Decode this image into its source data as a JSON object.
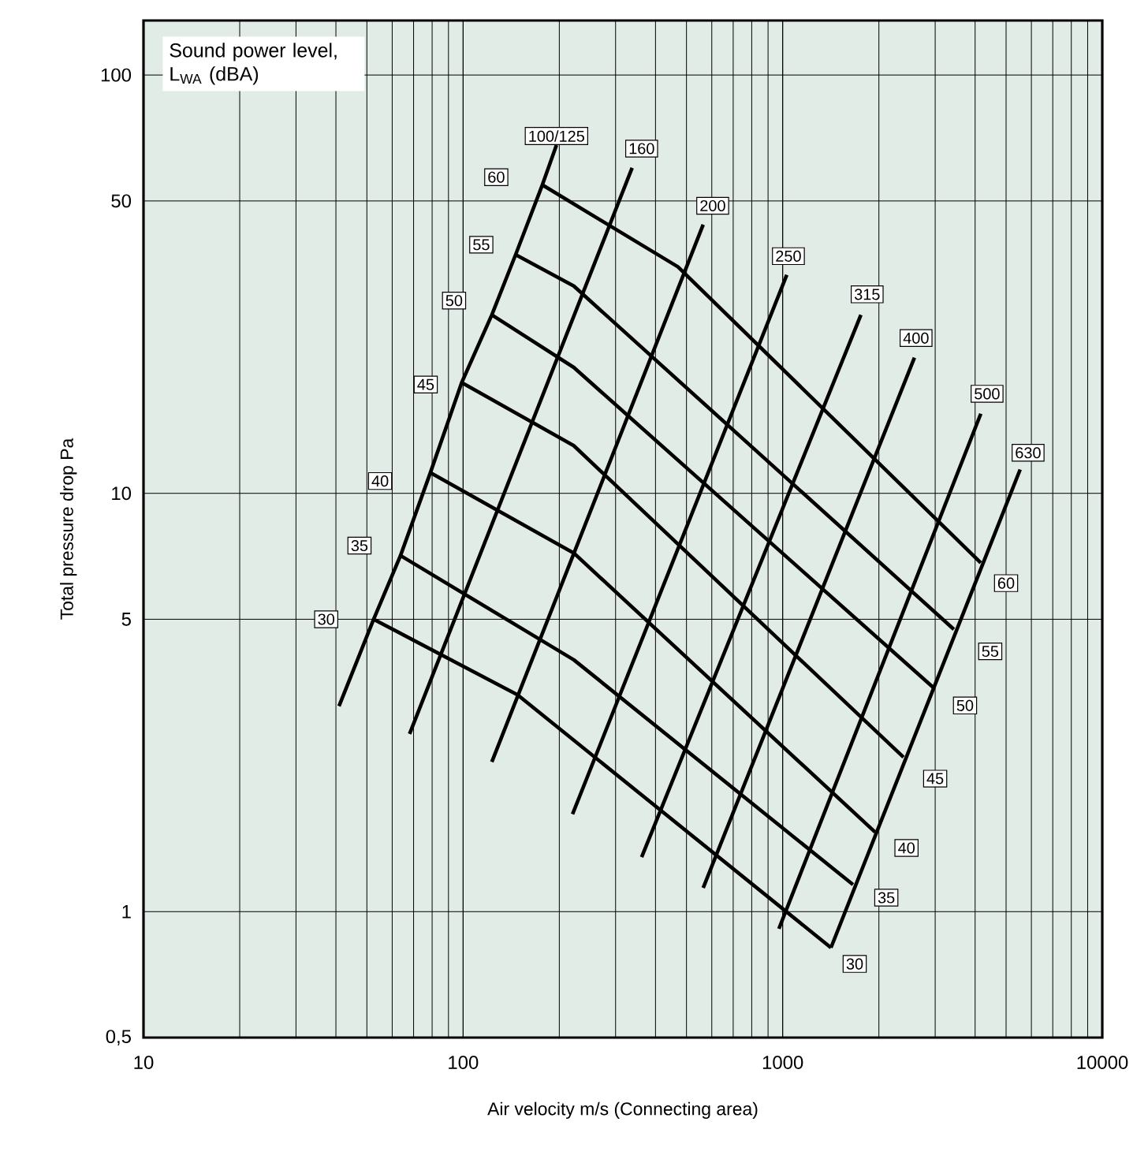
{
  "chart_data": {
    "type": "line",
    "xlabel": "Air velocity m/s (Connecting area)",
    "ylabel": "Total pressure drop Pa",
    "log": "xy",
    "grid": true,
    "marker": "none",
    "line_style": "solid",
    "xlim": [
      10,
      10000
    ],
    "ylim": [
      0.5,
      135
    ],
    "xticks": [
      10,
      100,
      1000,
      10000
    ],
    "yticks": [
      {
        "value": 0.5,
        "label": "0,5"
      },
      1,
      5,
      10,
      50,
      100
    ],
    "series": [
      {
        "color": "#000000",
        "x": [
          52.5,
          148,
          1416
        ],
        "values": [
          5.0,
          3.3,
          0.82
        ]
      },
      {
        "color": "#000000",
        "x": [
          63.7,
          222,
          1660
        ],
        "values": [
          7.1,
          4.0,
          1.16
        ]
      },
      {
        "color": "#000000",
        "x": [
          79,
          222,
          1946
        ],
        "values": [
          11.2,
          7.2,
          1.55
        ]
      },
      {
        "color": "#000000",
        "x": [
          99,
          222,
          2388
        ],
        "values": [
          18.4,
          13,
          2.34
        ]
      },
      {
        "color": "#000000",
        "x": [
          123,
          222,
          2965
        ],
        "values": [
          26.7,
          20,
          3.43
        ]
      },
      {
        "color": "#000000",
        "x": [
          146,
          222,
          3433
        ],
        "values": [
          37.2,
          31.3,
          4.73
        ]
      },
      {
        "color": "#000000",
        "x": [
          177,
          470,
          4168
        ],
        "values": [
          54.6,
          34.8,
          6.82
        ]
      },
      {
        "color": "#000000",
        "x": [
          40.9,
          52.5,
          63.7,
          79,
          99,
          123,
          146,
          177,
          196
        ],
        "values": [
          3.1,
          5.0,
          7.1,
          11.2,
          18.4,
          26.7,
          37.2,
          54.6,
          68
        ]
      },
      {
        "color": "#000000",
        "x": [
          68,
          338
        ],
        "values": [
          2.66,
          60
        ]
      },
      {
        "color": "#000000",
        "x": [
          123,
          564
        ],
        "values": [
          2.28,
          43.9
        ]
      },
      {
        "color": "#000000",
        "x": [
          220,
          1030
        ],
        "values": [
          1.71,
          33.3
        ]
      },
      {
        "color": "#000000",
        "x": [
          362,
          1757
        ],
        "values": [
          1.35,
          26.7
        ]
      },
      {
        "color": "#000000",
        "x": [
          564,
          2584
        ],
        "values": [
          1.14,
          21.1
        ]
      },
      {
        "color": "#000000",
        "x": [
          973,
          4168
        ],
        "values": [
          0.91,
          15.5
        ]
      },
      {
        "color": "#000000",
        "x": [
          1416,
          5534
        ],
        "values": [
          0.82,
          11.4
        ]
      }
    ],
    "annotations": [
      "Sound power level, L$_{WA}$ (dBA)",
      {
        "text": "60",
        "x": 127,
        "y": 57
      },
      {
        "text": "55",
        "x": 114,
        "y": 39.3
      },
      {
        "text": "50",
        "x": 93.7,
        "y": 28.9
      },
      {
        "text": "45",
        "x": 76.4,
        "y": 18.2
      },
      {
        "text": "40",
        "x": 55,
        "y": 10.7
      },
      {
        "text": "35",
        "x": 47.4,
        "y": 7.5
      },
      {
        "text": "30",
        "x": 37.3,
        "y": 5.0
      },
      {
        "text": "60",
        "x": 5000,
        "y": 6.1
      },
      {
        "text": "55",
        "x": 4460,
        "y": 4.19
      },
      {
        "text": "50",
        "x": 3720,
        "y": 3.11
      },
      {
        "text": "45",
        "x": 3000,
        "y": 2.08
      },
      {
        "text": "40",
        "x": 2440,
        "y": 1.42
      },
      {
        "text": "35",
        "x": 2110,
        "y": 1.08
      },
      {
        "text": "30",
        "x": 1680,
        "y": 0.75
      },
      {
        "text": "100/125",
        "x": 196,
        "y": 68
      },
      {
        "text": "160",
        "x": 362,
        "y": 66.7
      },
      {
        "text": "200",
        "x": 604,
        "y": 48.7
      },
      {
        "text": "250",
        "x": 1042,
        "y": 36.9
      },
      {
        "text": "315",
        "x": 1838,
        "y": 29.9
      },
      {
        "text": "400",
        "x": 2614,
        "y": 23.5
      },
      {
        "text": "500",
        "x": 4360,
        "y": 17.3
      },
      {
        "text": "630",
        "x": 5860,
        "y": 12.5
      }
    ]
  }
}
